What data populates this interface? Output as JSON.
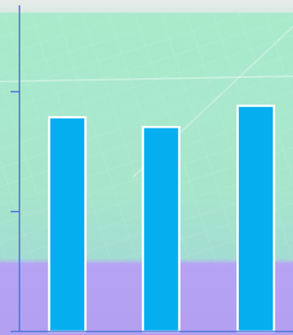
{
  "chart_data": {
    "type": "bar",
    "categories": [
      "",
      "",
      ""
    ],
    "values": [
      243,
      232,
      256
    ],
    "ylim": [
      0,
      370
    ],
    "yticks": [
      0,
      136,
      272
    ],
    "grid": false,
    "legend": "none",
    "title": "",
    "xlabel": "",
    "ylabel": ""
  },
  "colors": {
    "bar_fill": "#05AEEF",
    "bar_stroke": "#FFFFFF",
    "axis": "#4F74D9",
    "background_top": "#A9E9CB",
    "background_bottom": "#BBA8F4"
  },
  "background": {
    "description_icon": "solar-panel-photo-background"
  }
}
